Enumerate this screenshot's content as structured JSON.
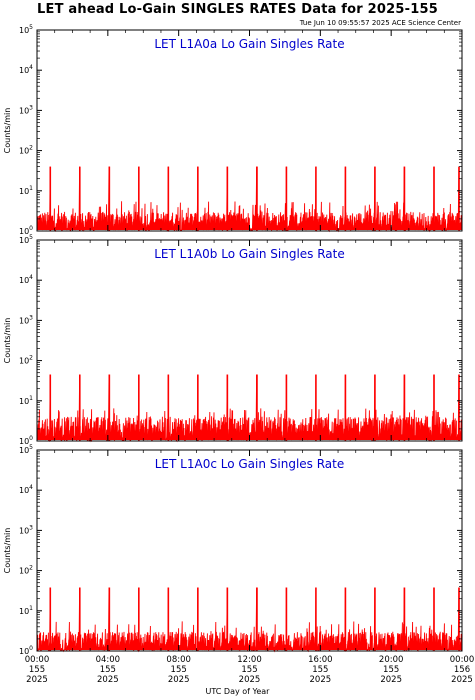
{
  "page": {
    "title": "LET ahead Lo-Gain SINGLES RATES Data for 2025-155",
    "timestamp": "Tue Jun 10 09:55:57 2025 ACE Science Center",
    "xlabel": "UTC Day of Year"
  },
  "chart_data": [
    {
      "type": "line",
      "title": "LET L1A0a Lo Gain Singles Rate",
      "ylabel": "Counts/min",
      "yscale": "log",
      "ylim": [
        1,
        100000
      ],
      "yticks": [
        "10^0",
        "10^1",
        "10^2",
        "10^3",
        "10^4",
        "10^5"
      ],
      "xlim": [
        "2025-06-04T00:00",
        "2025-06-05T00:00"
      ],
      "grid": false,
      "color": "#ff0000",
      "baseline_range": [
        1,
        3
      ],
      "spikes": {
        "times": [
          "00:45",
          "02:25",
          "04:05",
          "05:45",
          "07:25",
          "09:05",
          "10:45",
          "12:25",
          "14:05",
          "15:45",
          "17:25",
          "19:05",
          "20:45",
          "22:25",
          "23:50"
        ],
        "values": [
          40,
          40,
          40,
          40,
          40,
          40,
          40,
          40,
          40,
          40,
          40,
          40,
          40,
          40,
          40
        ]
      }
    },
    {
      "type": "line",
      "title": "LET L1A0b Lo Gain Singles Rate",
      "ylabel": "Counts/min",
      "yscale": "log",
      "ylim": [
        1,
        100000
      ],
      "yticks": [
        "10^0",
        "10^1",
        "10^2",
        "10^3",
        "10^4",
        "10^5"
      ],
      "xlim": [
        "2025-06-04T00:00",
        "2025-06-05T00:00"
      ],
      "grid": false,
      "color": "#ff0000",
      "baseline_range": [
        1,
        4
      ],
      "spikes": {
        "times": [
          "00:45",
          "02:25",
          "04:05",
          "05:45",
          "07:25",
          "09:05",
          "10:45",
          "12:25",
          "14:05",
          "15:45",
          "17:25",
          "19:05",
          "20:45",
          "22:25",
          "23:50"
        ],
        "values": [
          45,
          45,
          45,
          45,
          45,
          45,
          45,
          45,
          45,
          45,
          45,
          45,
          45,
          45,
          45
        ]
      }
    },
    {
      "type": "line",
      "title": "LET L1A0c Lo Gain Singles Rate",
      "ylabel": "Counts/min",
      "yscale": "log",
      "ylim": [
        1,
        100000
      ],
      "yticks": [
        "10^0",
        "10^1",
        "10^2",
        "10^3",
        "10^4",
        "10^5"
      ],
      "xlim": [
        "2025-06-04T00:00",
        "2025-06-05T00:00"
      ],
      "grid": false,
      "color": "#ff0000",
      "baseline_range": [
        1,
        3
      ],
      "spikes": {
        "times": [
          "00:45",
          "02:25",
          "04:05",
          "05:45",
          "07:25",
          "09:05",
          "10:45",
          "12:25",
          "14:05",
          "15:45",
          "17:25",
          "19:05",
          "20:45",
          "22:25",
          "23:50"
        ],
        "values": [
          38,
          38,
          38,
          38,
          38,
          38,
          38,
          38,
          38,
          38,
          38,
          38,
          38,
          38,
          38
        ]
      }
    }
  ],
  "xaxis": {
    "ticks": [
      {
        "hour": 0,
        "time": "00:00",
        "doy": "155",
        "year": "2025"
      },
      {
        "hour": 4,
        "time": "04:00",
        "doy": "155",
        "year": "2025"
      },
      {
        "hour": 8,
        "time": "08:00",
        "doy": "155",
        "year": "2025"
      },
      {
        "hour": 12,
        "time": "12:00",
        "doy": "155",
        "year": "2025"
      },
      {
        "hour": 16,
        "time": "16:00",
        "doy": "155",
        "year": "2025"
      },
      {
        "hour": 20,
        "time": "20:00",
        "doy": "155",
        "year": "2025"
      },
      {
        "hour": 24,
        "time": "00:00",
        "doy": "156",
        "year": "2025"
      }
    ]
  },
  "colors": {
    "data": "#ff0000",
    "panel_title": "#0000cc",
    "axes": "#000000"
  }
}
